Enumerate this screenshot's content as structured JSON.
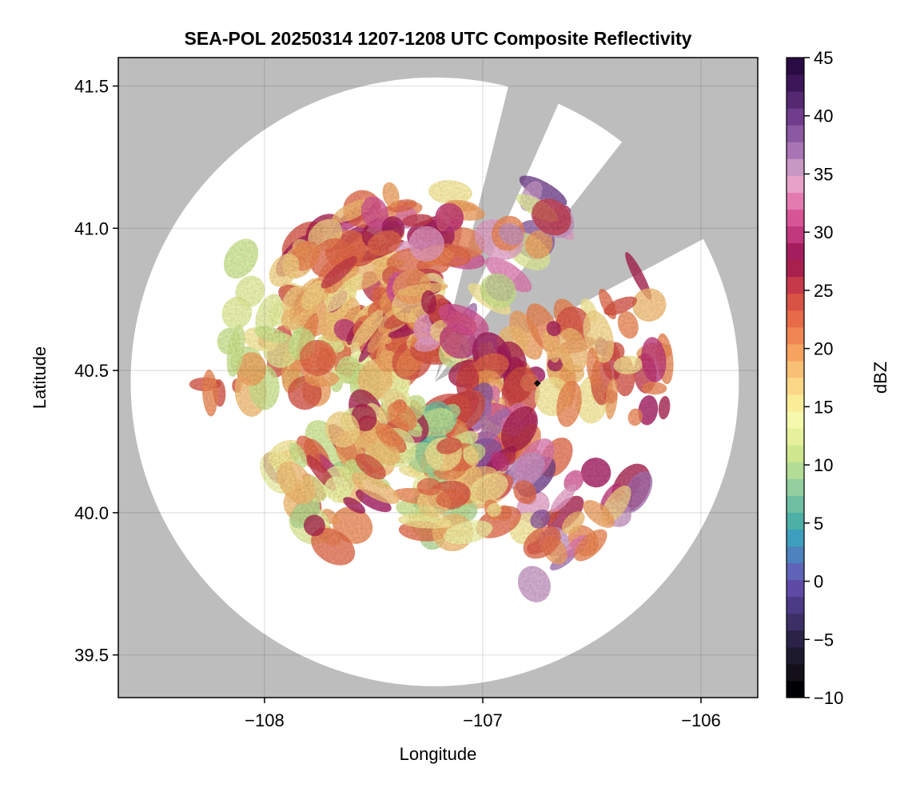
{
  "chart_data": {
    "type": "heatmap",
    "title": "SEA-POL 20250314 1207-1208 UTC Composite Reflectivity",
    "xlabel": "Longitude",
    "ylabel": "Latitude",
    "xlim": [
      -108.67,
      -105.74
    ],
    "ylim": [
      39.35,
      41.6
    ],
    "xticks": [
      -108,
      -107,
      -106
    ],
    "xtick_labels": [
      "−108",
      "−107",
      "−106"
    ],
    "yticks": [
      39.5,
      40.0,
      40.5,
      41.0,
      41.5
    ],
    "ytick_labels": [
      "39.5",
      "40.0",
      "40.5",
      "41.0",
      "41.5"
    ],
    "grid": true,
    "background_color": "#bdbdbd",
    "coverage_color": "#ffffff",
    "radar": {
      "lon": -107.22,
      "lat": 40.46,
      "max_range_deg_lat": 1.07,
      "blocked_sectors_deg_from_north": [
        [
          14,
          24
        ],
        [
          38,
          62
        ]
      ]
    },
    "marker": {
      "lon": -106.75,
      "lat": 40.455,
      "color": "#000000"
    },
    "colorbar": {
      "label": "dBZ",
      "vmin": -10,
      "vmax": 45,
      "step": 2.5,
      "ticks": [
        -10,
        -5,
        0,
        5,
        10,
        15,
        20,
        25,
        30,
        35,
        40,
        45
      ],
      "tick_labels": [
        "−10",
        "−5",
        "0",
        "5",
        "10",
        "15",
        "20",
        "25",
        "30",
        "35",
        "40",
        "45"
      ],
      "colormap": "Spectral (reversed) with extension",
      "colors": [
        "#000004",
        "#141019",
        "#1e1a2d",
        "#2a2347",
        "#3b2f66",
        "#4b3a86",
        "#5e4aa5",
        "#5f64b8",
        "#4c82be",
        "#3e9ebd",
        "#4db0a6",
        "#6fc0a2",
        "#93cf9f",
        "#b3dd97",
        "#cfe88f",
        "#e6f19b",
        "#f6f9ab",
        "#fbec98",
        "#fbd887",
        "#f8c074",
        "#f5a35f",
        "#f08752",
        "#e76b49",
        "#d95344",
        "#c6394a",
        "#a9204e",
        "#a41d5e",
        "#c1377d",
        "#d75597",
        "#e37bb1",
        "#e8a1c9",
        "#c898c5",
        "#a874b4",
        "#8b58a2",
        "#6f3d8c",
        "#552872",
        "#3c1658",
        "#2a0b42"
      ]
    },
    "echo_regions": [
      {
        "description_code": "W",
        "dbz_range": [
          10,
          25
        ]
      },
      {
        "description_code": "NW",
        "dbz_range": [
          15,
          30
        ]
      },
      {
        "description_code": "N",
        "dbz_range": [
          15,
          35
        ]
      },
      {
        "description_code": "NE",
        "dbz_range": [
          10,
          40
        ]
      },
      {
        "description_code": "E",
        "dbz_range": [
          15,
          30
        ]
      },
      {
        "description_code": "SE",
        "dbz_range": [
          15,
          40
        ]
      },
      {
        "description_code": "S",
        "dbz_range": [
          5,
          25
        ]
      },
      {
        "description_code": "SW",
        "dbz_range": [
          10,
          30
        ]
      }
    ]
  }
}
